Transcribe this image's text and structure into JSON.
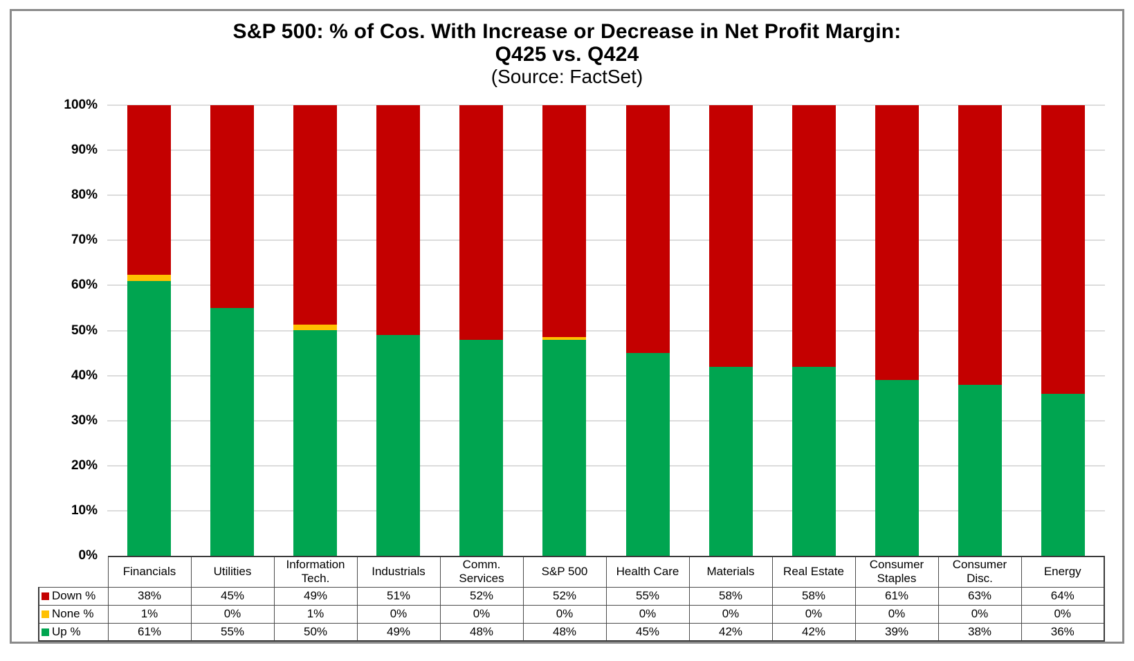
{
  "title": {
    "line1": "S&P 500: % of Cos. With Increase or Decrease in Net Profit Margin:",
    "line2": "Q425 vs. Q424",
    "source": "(Source: FactSet)"
  },
  "y_axis": {
    "ticks": [
      "100%",
      "90%",
      "80%",
      "70%",
      "60%",
      "50%",
      "40%",
      "30%",
      "20%",
      "10%",
      "0%"
    ]
  },
  "colors": {
    "down": "#C40000",
    "none": "#FFC000",
    "up": "#00A550",
    "gridline": "#DCDCDC",
    "frame_border": "#8A8A8A"
  },
  "chart_data": {
    "type": "bar",
    "stacked": true,
    "title": "S&P 500: % of Cos. With Increase or Decrease in Net Profit Margin: Q425 vs. Q424",
    "subtitle": "(Source: FactSet)",
    "categories": [
      "Financials",
      "Utilities",
      "Information Tech.",
      "Industrials",
      "Comm. Services",
      "S&P 500",
      "Health Care",
      "Materials",
      "Real Estate",
      "Consumer Staples",
      "Consumer Disc.",
      "Energy"
    ],
    "series": [
      {
        "name": "Down %",
        "color": "#C40000",
        "values": [
          38,
          45,
          49,
          51,
          52,
          52,
          55,
          58,
          58,
          61,
          63,
          64
        ]
      },
      {
        "name": "None %",
        "color": "#FFC000",
        "values": [
          1,
          0,
          1,
          0,
          0,
          0,
          0,
          0,
          0,
          0,
          0,
          0
        ]
      },
      {
        "name": "Up %",
        "color": "#00A550",
        "values": [
          61,
          55,
          50,
          49,
          48,
          48,
          45,
          42,
          42,
          39,
          38,
          36
        ]
      }
    ],
    "ylim": [
      0,
      100
    ],
    "y_tick_step": 10,
    "grid": "horizontal",
    "legend_position": "table-left",
    "none_render_pct": [
      1.3,
      0,
      1.3,
      0,
      0,
      0.6,
      0,
      0,
      0,
      0,
      0,
      0
    ]
  },
  "table": {
    "rows": [
      {
        "label": "Down %",
        "swatch": "#C40000",
        "values": [
          "38%",
          "45%",
          "49%",
          "51%",
          "52%",
          "52%",
          "55%",
          "58%",
          "58%",
          "61%",
          "63%",
          "64%"
        ]
      },
      {
        "label": "None %",
        "swatch": "#FFC000",
        "values": [
          "1%",
          "0%",
          "1%",
          "0%",
          "0%",
          "0%",
          "0%",
          "0%",
          "0%",
          "0%",
          "0%",
          "0%"
        ]
      },
      {
        "label": "Up %",
        "swatch": "#00A550",
        "values": [
          "61%",
          "55%",
          "50%",
          "49%",
          "48%",
          "48%",
          "45%",
          "42%",
          "42%",
          "39%",
          "38%",
          "36%"
        ]
      }
    ]
  }
}
